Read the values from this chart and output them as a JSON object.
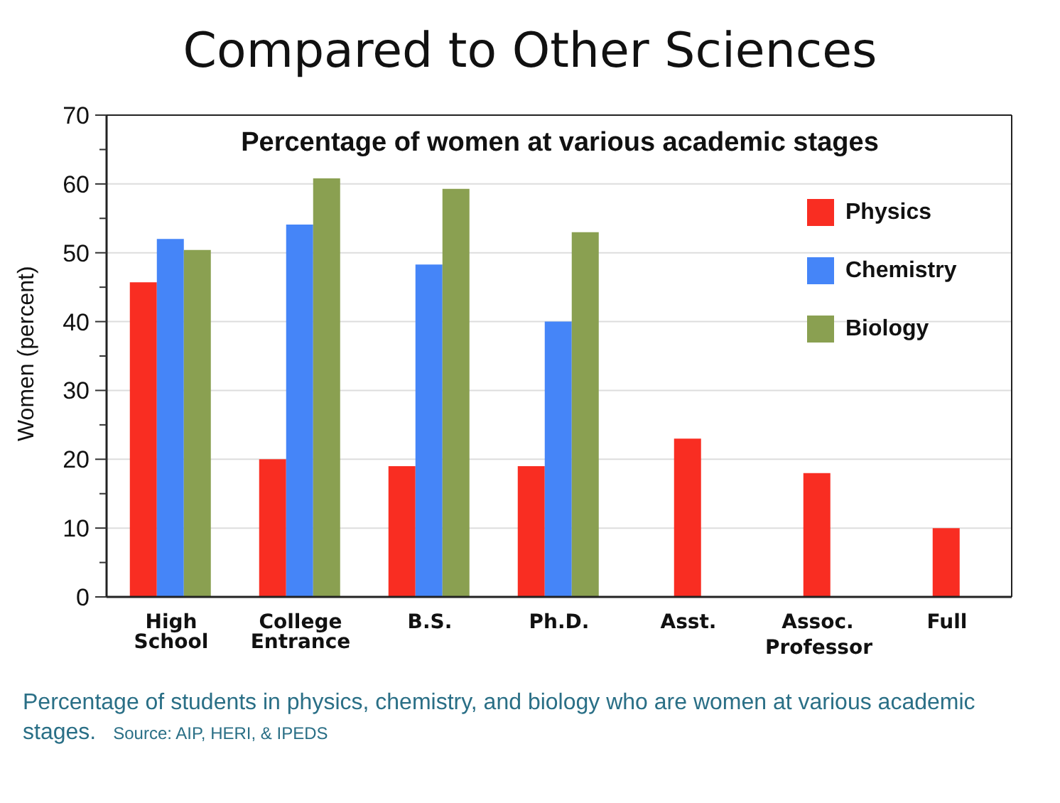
{
  "chart_data": {
    "type": "bar",
    "title": "Compared to Other Sciences",
    "subtitle": "Percentage of women at various academic stages",
    "ylabel": "Women (percent)",
    "categories": [
      "High School",
      "College Entrance",
      "B.S.",
      "Ph.D.",
      "Asst.",
      "Assoc.",
      "Full"
    ],
    "series": [
      {
        "name": "Physics",
        "color": "#f92d22",
        "values": [
          45.7,
          20,
          19,
          19,
          23,
          18,
          10
        ]
      },
      {
        "name": "Chemistry",
        "color": "#4585f8",
        "values": [
          52,
          54.1,
          48.3,
          40,
          null,
          null,
          null
        ]
      },
      {
        "name": "Biology",
        "color": "#8aa051",
        "values": [
          50.4,
          60.8,
          59.3,
          53,
          null,
          null,
          null
        ]
      }
    ],
    "ylim": [
      0,
      70
    ],
    "yticks": [
      0,
      {
        "value": 5,
        "label": null
      },
      10,
      {
        "value": 15,
        "label": null
      },
      20,
      {
        "value": 25,
        "label": null
      },
      30,
      {
        "value": 35,
        "label": null
      },
      40,
      {
        "value": 45,
        "label": null
      },
      50,
      {
        "value": 55,
        "label": null
      },
      60,
      {
        "value": 65,
        "label": null
      },
      70
    ],
    "grid": "y",
    "legend": "top right",
    "annotations": [
      "Professor",
      "Percentage of students in physics, chemistry, and biology who are women at various academic stages.",
      "Source: AIP, HERI, & IPEDS"
    ]
  }
}
